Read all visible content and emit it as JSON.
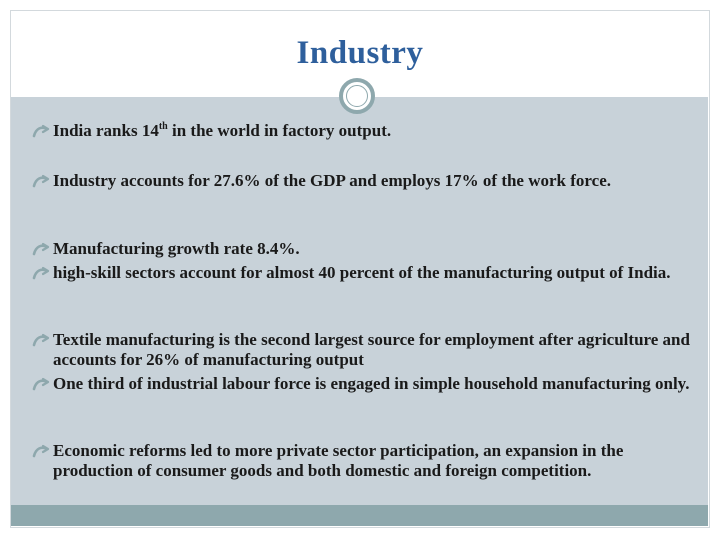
{
  "slide": {
    "title": "Industry",
    "bullets": [
      {
        "pre": "India ranks 14",
        "sup": "th",
        "post": " in the world in factory output."
      },
      {
        "text": "Industry accounts for 27.6% of the GDP and employs 17% of the work force."
      },
      {
        "text": "Manufacturing growth rate 8.4%."
      },
      {
        "text": "high-skill sectors account for almost 40 percent of the manufacturing output of India."
      },
      {
        "text": "Textile manufacturing is the second largest source for employment after agriculture and accounts for 26% of manufacturing output"
      },
      {
        "text": "One third of industrial labour force is engaged in simple household manufacturing only."
      },
      {
        "text": "Economic reforms led to more private sector participation, an expansion in the production of consumer goods and both domestic and foreign competition."
      }
    ]
  },
  "colors": {
    "title": "#2e5f9c",
    "band": "#c8d2d9",
    "bottom_bar": "#8ea8ad",
    "bullet_icon": "#8ea8ad"
  },
  "icons": {
    "bullet": "curly-arrow-bullet-icon",
    "ornament": "ring-ornament-icon"
  }
}
